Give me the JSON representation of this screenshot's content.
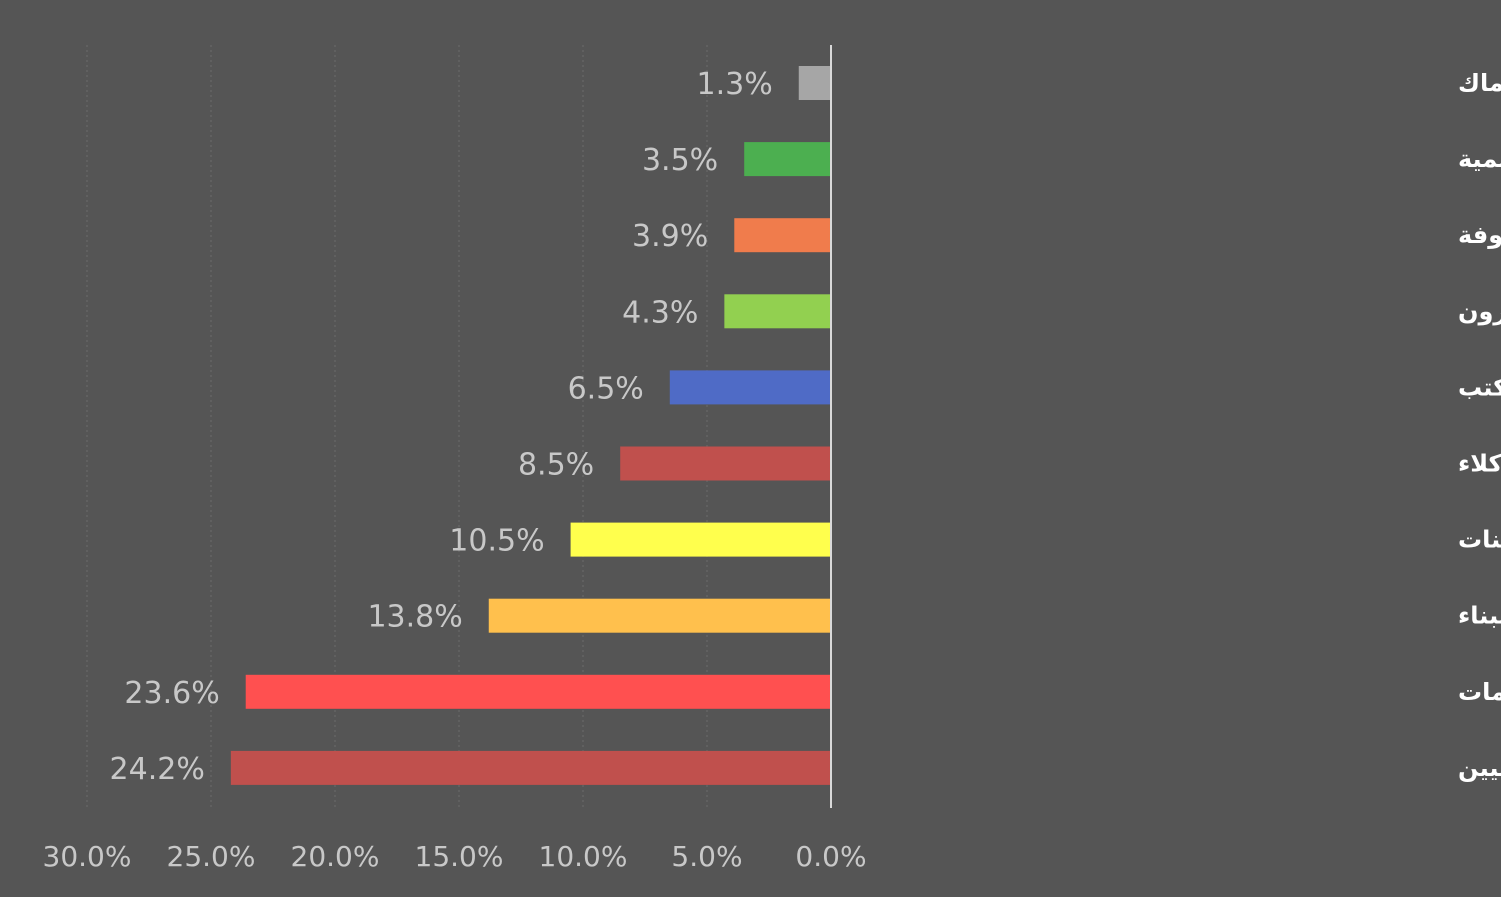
{
  "chart_data": {
    "type": "bar",
    "orientation": "horizontal",
    "x_direction": "reversed",
    "categories": [
      "عمال مهنيون في الراعة في التحريش وفي صيد الأسماك",
      "أصحاب مهن أكاديمية",
      "أصحاب مهن غير معروفة",
      "مديرون",
      "موظفون عامون وموظفو مكتب",
      "هندسيون، تقنيون وكلاء",
      "مشغلو منشآت وماكينات",
      "أصحاب مهنة في الصناعة في البناء",
      "موظفو مبيعات وخدمات",
      "عمال غير مهنيين"
    ],
    "values": [
      1.3,
      3.5,
      3.9,
      4.3,
      6.5,
      8.5,
      10.5,
      13.8,
      23.6,
      24.2
    ],
    "value_labels": [
      "1.3%",
      "3.5%",
      "3.9%",
      "4.3%",
      "6.5%",
      "8.5%",
      "10.5%",
      "13.8%",
      "23.6%",
      "24.2%"
    ],
    "colors": [
      "#a6a6a6",
      "#4caf50",
      "#f07c4c",
      "#92d050",
      "#4f6bc6",
      "#c0504d",
      "#ffff4d",
      "#ffc04d",
      "#ff5050",
      "#c0504d"
    ],
    "xlim": [
      0,
      30
    ],
    "x_ticks": [
      30,
      25,
      20,
      15,
      10,
      5,
      0
    ],
    "x_tick_labels": [
      "30.0%",
      "25.0%",
      "20.0%",
      "15.0%",
      "10.0%",
      "5.0%",
      "0.0%"
    ],
    "grid": "vertical",
    "legend": "none",
    "title": "",
    "xlabel": "",
    "ylabel": ""
  }
}
